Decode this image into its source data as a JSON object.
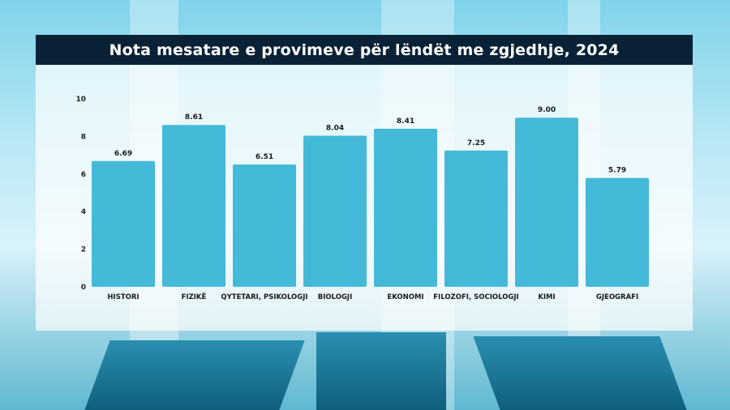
{
  "header": {
    "title": "Nota mesatare e provimeve për lëndët me zgjedhje, 2024"
  },
  "chart_data": {
    "type": "bar",
    "title": "Nota mesatare e provimeve për lëndët me zgjedhje, 2024",
    "xlabel": "",
    "ylabel": "",
    "ylim": [
      0,
      10
    ],
    "yticks": [
      "0",
      "2",
      "4",
      "6",
      "8",
      "10"
    ],
    "categories": [
      "HISTORI",
      "FIZIKË",
      "QYTETARI, PSIKOLOGJI",
      "BIOLOGJI",
      "EKONOMI",
      "FILOZOFI, SOCIOLOGJI",
      "KIMI",
      "GJEOGRAFI"
    ],
    "values": [
      6.69,
      8.61,
      6.51,
      8.04,
      8.41,
      7.25,
      9.0,
      5.79
    ],
    "value_labels": [
      "6.69",
      "8.61",
      "6.51",
      "8.04",
      "8.41",
      "7.25",
      "9.00",
      "5.79"
    ],
    "bar_color": "#45b9d8",
    "grid": false,
    "legend": "none"
  },
  "colors": {
    "title_bar": "#0b2236",
    "bar": "#45b9d8",
    "text": "#1a1a1a"
  }
}
